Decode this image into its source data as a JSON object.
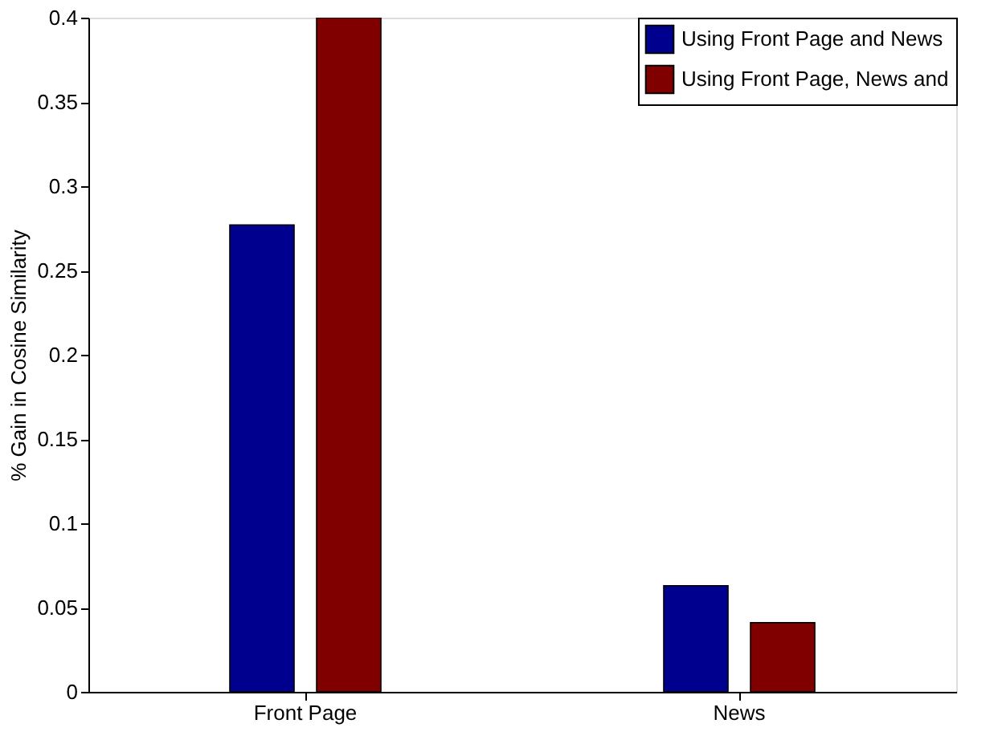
{
  "chart_data": {
    "type": "bar",
    "ylabel": "% Gain in Cosine Similarity",
    "categories": [
      "Front Page",
      "News"
    ],
    "series": [
      {
        "name": "Using Front Page and News",
        "color": "#00008f",
        "values": [
          0.277,
          0.063
        ]
      },
      {
        "name": "Using Front Page, News and",
        "color": "#800000",
        "values": [
          0.4,
          0.041
        ]
      }
    ],
    "ylim": [
      0,
      0.4
    ],
    "yticks": [
      0,
      0.05,
      0.1,
      0.15,
      0.2,
      0.25,
      0.3,
      0.35,
      0.4
    ],
    "grid": false,
    "legend": "top right"
  }
}
